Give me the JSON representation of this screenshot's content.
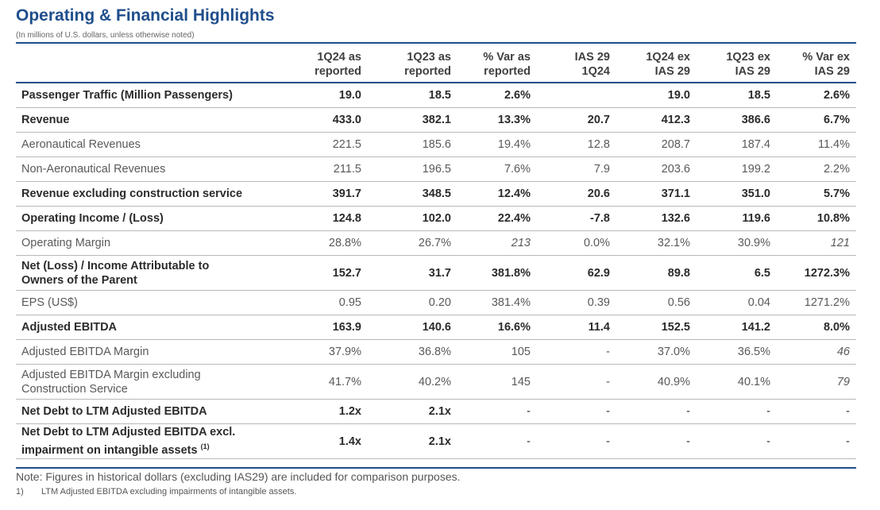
{
  "title": "Operating & Financial Highlights",
  "subtitle": "(In millions of U.S. dollars, unless otherwise noted)",
  "columns": [
    {
      "line1": "1Q24 as",
      "line2": "reported"
    },
    {
      "line1": "1Q23 as",
      "line2": "reported"
    },
    {
      "line1": "% Var as",
      "line2": "reported"
    },
    {
      "line1": "IAS 29",
      "line2": "1Q24"
    },
    {
      "line1": "1Q24 ex",
      "line2": "IAS 29"
    },
    {
      "line1": "1Q23 ex",
      "line2": "IAS 29"
    },
    {
      "line1": "% Var ex",
      "line2": "IAS 29"
    }
  ],
  "rows": [
    {
      "label": "Passenger Traffic (Million Passengers)",
      "bold": true,
      "values": [
        "19.0",
        "18.5",
        "2.6%",
        "",
        "19.0",
        "18.5",
        "2.6%"
      ]
    },
    {
      "label": "Revenue",
      "bold": true,
      "values": [
        "433.0",
        "382.1",
        "13.3%",
        "20.7",
        "412.3",
        "386.6",
        "6.7%"
      ]
    },
    {
      "label": "Aeronautical Revenues",
      "bold": false,
      "values": [
        "221.5",
        "185.6",
        "19.4%",
        "12.8",
        "208.7",
        "187.4",
        "11.4%"
      ]
    },
    {
      "label": "Non-Aeronautical Revenues",
      "bold": false,
      "values": [
        "211.5",
        "196.5",
        "7.6%",
        "7.9",
        "203.6",
        "199.2",
        "2.2%"
      ]
    },
    {
      "label": "Revenue excluding construction service",
      "bold": true,
      "values": [
        "391.7",
        "348.5",
        "12.4%",
        "20.6",
        "371.1",
        "351.0",
        "5.7%"
      ]
    },
    {
      "label": "Operating Income / (Loss)",
      "bold": true,
      "values": [
        "124.8",
        "102.0",
        "22.4%",
        "-7.8",
        "132.6",
        "119.6",
        "10.8%"
      ]
    },
    {
      "label": "Operating Margin",
      "bold": false,
      "values": [
        "28.8%",
        "26.7%",
        "213",
        "0.0%",
        "32.1%",
        "30.9%",
        "121"
      ]
    },
    {
      "label_line1": "Net (Loss) / Income Attributable to",
      "label_line2": "Owners of the Parent",
      "bold": true,
      "values": [
        "152.7",
        "31.7",
        "381.8%",
        "62.9",
        "89.8",
        "6.5",
        "1272.3%"
      ]
    },
    {
      "label": "EPS (US$)",
      "bold": false,
      "values": [
        "0.95",
        "0.20",
        "381.4%",
        "0.39",
        "0.56",
        "0.04",
        "1271.2%"
      ]
    },
    {
      "label": "Adjusted EBITDA",
      "bold": true,
      "values": [
        "163.9",
        "140.6",
        "16.6%",
        "11.4",
        "152.5",
        "141.2",
        "8.0%"
      ]
    },
    {
      "label": "Adjusted EBITDA Margin",
      "bold": false,
      "values": [
        "37.9%",
        "36.8%",
        "105",
        "-",
        "37.0%",
        "36.5%",
        "46"
      ]
    },
    {
      "label_line1": "Adjusted EBITDA Margin excluding",
      "label_line2": "Construction Service",
      "bold": false,
      "values": [
        "41.7%",
        "40.2%",
        "145",
        "-",
        "40.9%",
        "40.1%",
        "79"
      ]
    },
    {
      "label": "Net Debt to LTM Adjusted EBITDA",
      "bold": true,
      "values": [
        "1.2x",
        "2.1x",
        "-",
        "-",
        "-",
        "-",
        "-"
      ]
    },
    {
      "label_line1": "Net Debt to LTM Adjusted EBITDA excl.",
      "label_line2": "impairment on intangible assets",
      "footnote_ref": "(1)",
      "bold": true,
      "values": [
        "1.4x",
        "2.1x",
        "-",
        "-",
        "-",
        "-",
        "-"
      ]
    }
  ],
  "note": "Note: Figures in historical dollars (excluding IAS29) are included for comparison purposes.",
  "footnote": {
    "number": "1)",
    "text": "LTM Adjusted EBITDA excluding impairments of intangible assets."
  },
  "colors": {
    "accent": "#1f4e8c",
    "row_rule": "#b8b8b8"
  }
}
